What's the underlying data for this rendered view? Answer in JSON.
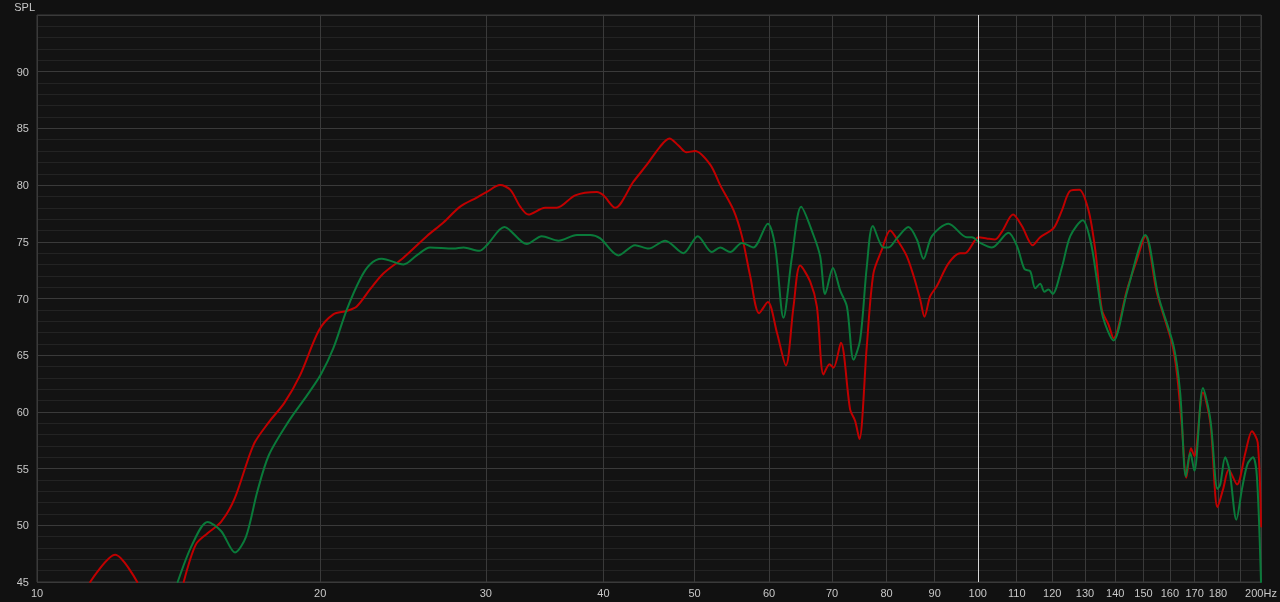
{
  "chart_data": {
    "type": "line",
    "ylabel": "SPL",
    "xlim": [
      10,
      200
    ],
    "ylim": [
      45,
      95
    ],
    "log": "x",
    "grid": true,
    "xticks": [
      10,
      20,
      30,
      40,
      50,
      60,
      70,
      80,
      90,
      100,
      110,
      120,
      130,
      140,
      150,
      160,
      170,
      180,
      {
        "value": 190,
        "label": null
      },
      {
        "value": 200,
        "label": "200Hz"
      }
    ],
    "yticks": [
      45,
      50,
      55,
      60,
      65,
      70,
      75,
      80,
      85,
      90
    ],
    "ref_lines": [
      {
        "axis": "x",
        "value": 100,
        "color": "#d8d8d8"
      }
    ],
    "series": [
      {
        "color": "#c00000",
        "x": [
          11.39,
          12.11,
          12.78,
          13.5,
          14.32,
          14.75,
          15.18,
          15.69,
          16.21,
          16.99,
          17.64,
          18.32,
          19.03,
          19.94,
          20.65,
          21.34,
          21.87,
          22.59,
          23.34,
          24.52,
          25.96,
          27.04,
          28.17,
          29.34,
          30.07,
          31.06,
          31.84,
          32.63,
          33.29,
          34.68,
          35.68,
          37.33,
          39.36,
          40.0,
          41.17,
          43.05,
          44.49,
          45.96,
          47.01,
          48.06,
          48.98,
          50.06,
          51.95,
          53.23,
          55.0,
          56.14,
          57.28,
          58.56,
          59.82,
          61.16,
          62.52,
          63.7,
          64.74,
          66.34,
          67.44,
          68.55,
          69.56,
          70.25,
          71.53,
          73.17,
          74.07,
          74.84,
          76.21,
          77.45,
          79.07,
          80.7,
          82.36,
          84.08,
          85.45,
          86.86,
          87.77,
          89.0,
          90.47,
          93.08,
          95.79,
          96.97,
          100.2,
          102.2,
          104.3,
          106.1,
          109.0,
          111.4,
          114.4,
          116.5,
          120.4,
          122.9,
          125.4,
          128.2,
          131.1,
          133.3,
          135.5,
          137.7,
          139.4,
          144.1,
          147.6,
          150.7,
          155.0,
          160.8,
          162.8,
          164.8,
          166.6,
          168.5,
          169.9,
          173.5,
          176.7,
          179.8,
          182.3,
          184.8,
          188.6,
          192.5,
          195.6,
          198.4,
          200
        ],
        "values": [
          45,
          47.4,
          45,
          null,
          45,
          48.3,
          49.3,
          50.3,
          52.3,
          57.1,
          59.1,
          60.8,
          63.2,
          67.2,
          68.6,
          68.9,
          69.3,
          70.8,
          72.2,
          73.6,
          75.5,
          76.7,
          78.1,
          78.9,
          79.4,
          80.0,
          79.6,
          78.1,
          77.4,
          78.0,
          78.0,
          79.1,
          79.4,
          79.1,
          78.0,
          80.3,
          81.8,
          83.4,
          84.1,
          83.5,
          82.9,
          83.0,
          81.8,
          80.0,
          77.8,
          75.5,
          72.0,
          68.7,
          69.7,
          67.0,
          64.1,
          69.3,
          72.9,
          71.5,
          69.3,
          63.3,
          64.2,
          63.9,
          66.1,
          60.2,
          59.2,
          57.6,
          65.8,
          72.2,
          74.3,
          76.0,
          75.0,
          73.7,
          72.0,
          69.9,
          68.4,
          70.2,
          71.1,
          73.1,
          74.0,
          74.0,
          75.4,
          75.3,
          75.2,
          75.9,
          77.4,
          76.4,
          74.7,
          75.4,
          76.2,
          77.8,
          79.5,
          79.6,
          77.8,
          74.3,
          69.0,
          67.7,
          66.5,
          70.8,
          73.4,
          75.5,
          70.5,
          66.1,
          63.4,
          58.7,
          54.2,
          56.8,
          56.1,
          61.7,
          59.0,
          51.6,
          53.2,
          54.9,
          53.6,
          56.4,
          58.3,
          57.3,
          49.9
        ]
      },
      {
        "color": "#0a7a3a",
        "x": [
          14.11,
          14.62,
          15.18,
          15.69,
          16.24,
          16.68,
          17.15,
          17.64,
          18.49,
          19.38,
          20.03,
          20.65,
          21.34,
          22.05,
          22.59,
          23.25,
          24.52,
          25.33,
          26.17,
          27.71,
          28.4,
          29.52,
          30.07,
          31.39,
          33.16,
          34.4,
          35.83,
          37.48,
          38.72,
          39.69,
          41.5,
          43.22,
          44.67,
          46.53,
          48.65,
          50.39,
          52.15,
          53.23,
          54.55,
          56.14,
          57.73,
          59.82,
          60.9,
          62.15,
          63.46,
          64.9,
          66.88,
          68.0,
          68.83,
          70.15,
          71.41,
          72.59,
          73.78,
          74.99,
          76.21,
          77.35,
          79.37,
          80.36,
          82.03,
          84.38,
          86.15,
          87.56,
          89.38,
          93.08,
          97.37,
          98.56,
          100.6,
          103.5,
          107.8,
          110.1,
          112.1,
          113.7,
          115.1,
          116.5,
          117.7,
          118.9,
          120.1,
          122.9,
          125.4,
          129.3,
          131.9,
          133.8,
          135.8,
          139.4,
          144.1,
          150.7,
          155.6,
          161.5,
          164.1,
          166.4,
          168.2,
          169.9,
          173.5,
          176.7,
          179.8,
          181.0,
          183.2,
          185.2,
          188.3,
          191.0,
          193.5,
          196.1,
          198.0,
          200
        ],
        "values": [
          45,
          48.3,
          50.3,
          49.5,
          47.6,
          49.0,
          53.0,
          56.2,
          59.1,
          61.5,
          63.3,
          65.6,
          69.0,
          71.7,
          73.0,
          73.5,
          73.0,
          73.8,
          74.5,
          74.4,
          74.5,
          74.2,
          74.7,
          76.3,
          74.8,
          75.5,
          75.1,
          75.6,
          75.6,
          75.3,
          73.8,
          74.7,
          74.4,
          75.1,
          74.0,
          75.5,
          74.1,
          74.5,
          74.1,
          74.9,
          74.5,
          76.6,
          74.6,
          68.3,
          73.7,
          78.1,
          75.6,
          73.7,
          70.4,
          72.7,
          70.7,
          69.3,
          64.6,
          66.4,
          72.8,
          76.4,
          74.5,
          74.5,
          75.3,
          76.3,
          75.2,
          73.5,
          75.5,
          76.6,
          75.4,
          75.4,
          74.9,
          74.5,
          75.8,
          74.6,
          72.6,
          72.4,
          70.9,
          71.3,
          70.6,
          70.8,
          70.4,
          72.8,
          75.5,
          76.9,
          74.9,
          71.7,
          68.4,
          66.3,
          70.6,
          75.6,
          70.2,
          65.8,
          61.7,
          54.3,
          56.4,
          54.8,
          62.1,
          59.3,
          53.2,
          53.6,
          56.0,
          54.8,
          50.5,
          53.3,
          55.4,
          56.0,
          54.3,
          45
        ]
      }
    ]
  }
}
